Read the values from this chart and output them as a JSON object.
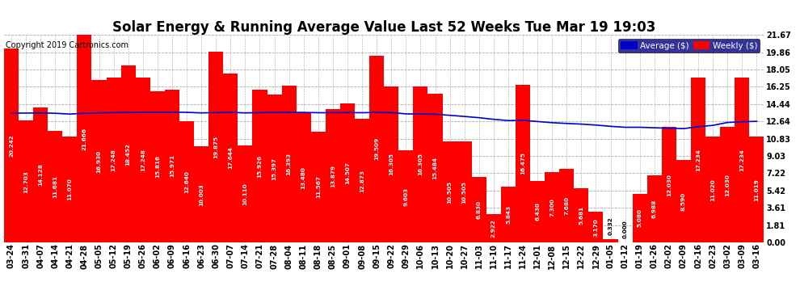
{
  "title": "Solar Energy & Running Average Value Last 52 Weeks Tue Mar 19 19:03",
  "copyright": "Copyright 2019 Cartronics.com",
  "categories": [
    "03-24",
    "03-31",
    "04-07",
    "04-14",
    "04-21",
    "04-28",
    "05-05",
    "05-12",
    "05-19",
    "05-26",
    "06-02",
    "06-09",
    "06-16",
    "06-23",
    "06-30",
    "07-07",
    "07-14",
    "07-21",
    "07-28",
    "08-04",
    "08-11",
    "08-18",
    "08-25",
    "09-01",
    "09-08",
    "09-15",
    "09-22",
    "09-29",
    "10-06",
    "10-13",
    "10-20",
    "10-27",
    "11-03",
    "11-10",
    "11-17",
    "11-24",
    "12-01",
    "12-08",
    "12-15",
    "12-22",
    "12-29",
    "01-05",
    "01-12",
    "01-19",
    "01-26",
    "02-02",
    "02-09",
    "02-16",
    "02-23",
    "03-02",
    "03-09",
    "03-16"
  ],
  "weekly_values": [
    20.242,
    12.703,
    14.128,
    11.681,
    11.07,
    21.666,
    16.93,
    17.248,
    18.452,
    17.248,
    15.816,
    15.971,
    12.64,
    10.003,
    19.875,
    17.644,
    10.11,
    15.926,
    15.397,
    16.393,
    13.48,
    11.567,
    13.879,
    14.507,
    12.873,
    19.509,
    16.305,
    9.603,
    16.305,
    15.484,
    10.505,
    10.505,
    6.83,
    2.922,
    5.843,
    16.475,
    6.43,
    7.3,
    7.68,
    5.681,
    3.17,
    0.332,
    0.0,
    5.08,
    6.988,
    12.03,
    8.59,
    17.234,
    11.02,
    12.03,
    17.234,
    11.019
  ],
  "avg_values": [
    13.5,
    13.5,
    13.52,
    13.48,
    13.4,
    13.48,
    13.52,
    13.55,
    13.58,
    13.6,
    13.6,
    13.6,
    13.58,
    13.52,
    13.55,
    13.58,
    13.52,
    13.55,
    13.57,
    13.58,
    13.57,
    13.54,
    13.54,
    13.55,
    13.54,
    13.57,
    13.55,
    13.42,
    13.4,
    13.38,
    13.27,
    13.15,
    13.02,
    12.85,
    12.72,
    12.75,
    12.62,
    12.5,
    12.42,
    12.35,
    12.25,
    12.12,
    12.02,
    12.02,
    11.97,
    11.92,
    11.88,
    12.08,
    12.22,
    12.52,
    12.6,
    12.64
  ],
  "bar_color": "#FF0000",
  "avg_line_color": "#0000CC",
  "background_color": "#FFFFFF",
  "grid_color": "#AAAAAA",
  "ylim": [
    0,
    21.67
  ],
  "yticks": [
    0.0,
    1.81,
    3.61,
    5.42,
    7.22,
    9.03,
    10.83,
    12.64,
    14.44,
    16.25,
    18.05,
    19.86,
    21.67
  ],
  "legend_avg_label": "Average ($)",
  "legend_weekly_label": "Weekly ($)",
  "legend_avg_bg": "#0000CC",
  "legend_weekly_bg": "#FF0000",
  "title_fontsize": 12,
  "tick_fontsize": 7,
  "value_fontsize": 5.2
}
